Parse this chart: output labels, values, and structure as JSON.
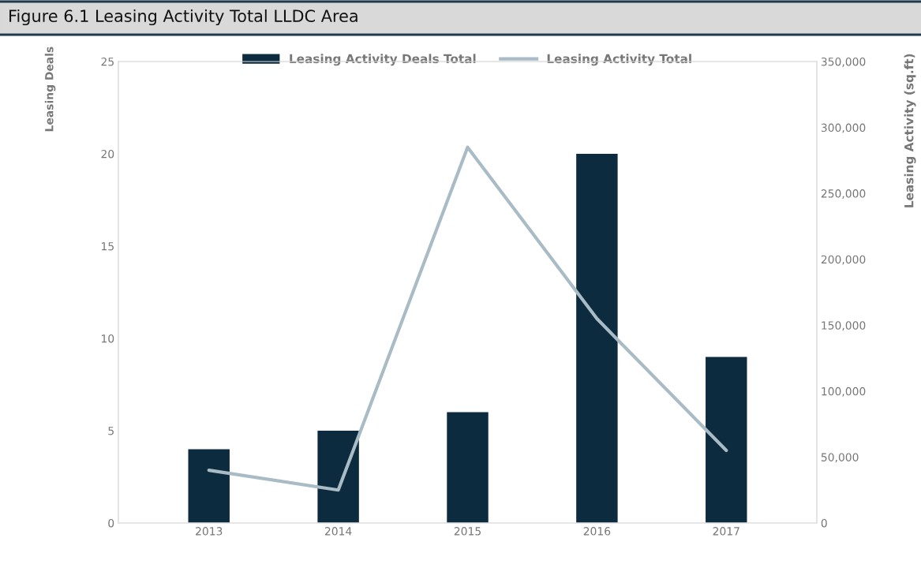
{
  "chart_data": {
    "type": "bar",
    "title": "Figure 6.1 Leasing Activity Total LLDC Area",
    "categories": [
      "2013",
      "2014",
      "2015",
      "2016",
      "2017"
    ],
    "ylabel": "Leasing Deals",
    "y2label": "Leasing Activity (sq.ft)",
    "ylim": [
      0,
      25
    ],
    "yticks": [
      0,
      5,
      10,
      15,
      20,
      25
    ],
    "y2lim": [
      0,
      350000
    ],
    "y2ticks": [
      {
        "value": 0,
        "label": "0"
      },
      {
        "value": 50000,
        "label": "50,000"
      },
      {
        "value": 100000,
        "label": "100,000"
      },
      {
        "value": 150000,
        "label": "150,000"
      },
      {
        "value": 200000,
        "label": "200,000"
      },
      {
        "value": 250000,
        "label": "250,000"
      },
      {
        "value": 300000,
        "label": "300,000"
      },
      {
        "value": 350000,
        "label": "350,000"
      }
    ],
    "grid": false,
    "legend": "top",
    "series": [
      {
        "name": "Leasing Activity Deals Total",
        "type": "bar",
        "color": "#0d2b3e",
        "values": [
          4,
          5,
          6,
          20,
          9
        ]
      },
      {
        "name": "Leasing Activity Total",
        "type": "line",
        "axis": "y2",
        "color": "#a9bcc6",
        "values": [
          40000,
          25000,
          285000,
          155000,
          55000
        ]
      }
    ]
  }
}
